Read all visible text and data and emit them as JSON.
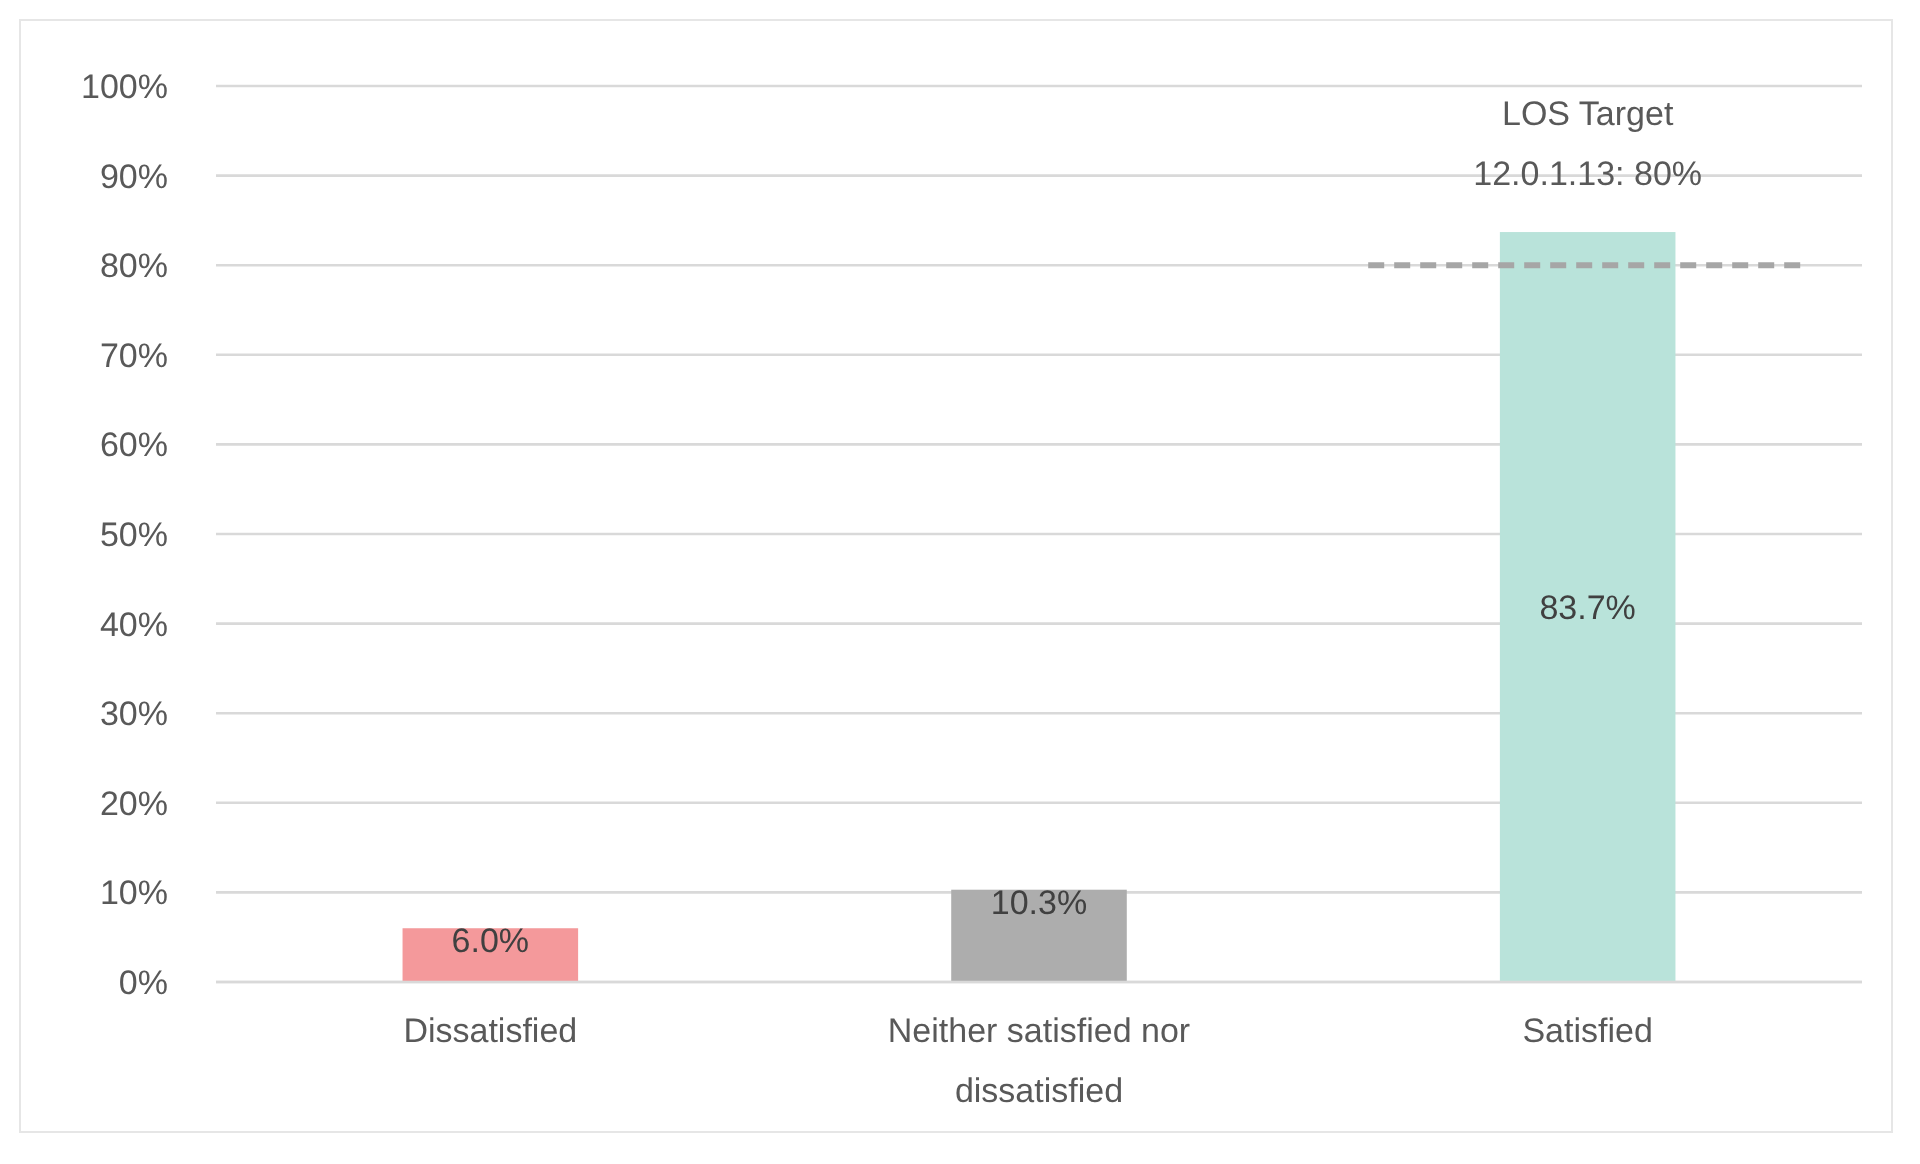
{
  "chart_data": {
    "type": "bar",
    "categories": [
      "Dissatisfied",
      "Neither satisfied nor dissatisfied",
      "Satisfied"
    ],
    "values": [
      6.0,
      10.3,
      83.7
    ],
    "colors": [
      "#f4999b",
      "#adadad",
      "#b9e3da"
    ],
    "value_labels": [
      "6.0%",
      "10.3%",
      "83.7%"
    ],
    "ylim": [
      0,
      100
    ],
    "yticks": [
      {
        "value": 0,
        "label": "0%"
      },
      {
        "value": 10,
        "label": "10%"
      },
      {
        "value": 20,
        "label": "20%"
      },
      {
        "value": 30,
        "label": "30%"
      },
      {
        "value": 40,
        "label": "40%"
      },
      {
        "value": 50,
        "label": "50%"
      },
      {
        "value": 60,
        "label": "60%"
      },
      {
        "value": 70,
        "label": "70%"
      },
      {
        "value": 80,
        "label": "80%"
      },
      {
        "value": 90,
        "label": "90%"
      },
      {
        "value": 100,
        "label": "100%"
      }
    ],
    "grid": "y",
    "ref_lines": [
      {
        "axis": "y",
        "value": 80,
        "label": "LOS Target 12.0.1.13: 80%",
        "color": "#a6a6a6",
        "line_style": "dashed"
      }
    ]
  }
}
